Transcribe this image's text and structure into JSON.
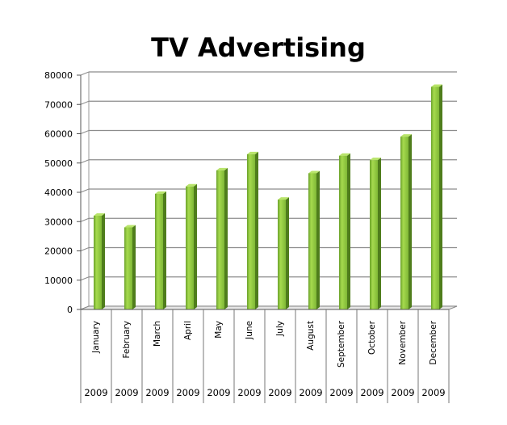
{
  "chart_data": {
    "type": "bar",
    "title": "TV Advertising",
    "categories": [
      "January",
      "February",
      "March",
      "April",
      "May",
      "June",
      "July",
      "August",
      "September",
      "October",
      "November",
      "December"
    ],
    "years": [
      "2009",
      "2009",
      "2009",
      "2009",
      "2009",
      "2009",
      "2009",
      "2009",
      "2009",
      "2009",
      "2009",
      "2009"
    ],
    "values": [
      32000,
      28000,
      39500,
      42000,
      47500,
      53000,
      37500,
      46500,
      52500,
      51000,
      59000,
      76000
    ],
    "ylim": [
      0,
      80000
    ],
    "yticks": [
      0,
      10000,
      20000,
      30000,
      40000,
      50000,
      60000,
      70000,
      80000
    ],
    "grid": true,
    "bar_color": "#8dc63f"
  }
}
